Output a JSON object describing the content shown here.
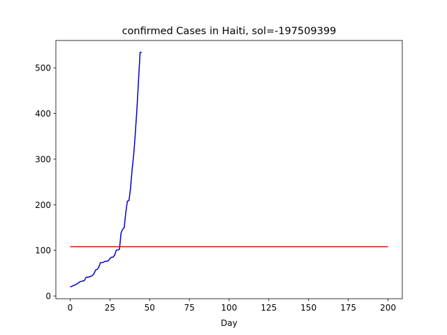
{
  "chart_data": {
    "type": "line",
    "title": "confirmed Cases in Haiti, sol=-197509399",
    "xlabel": "Day",
    "ylabel": "",
    "xlim": [
      -9,
      209
    ],
    "ylim": [
      -6,
      560
    ],
    "xticks": [
      0,
      25,
      50,
      75,
      100,
      125,
      150,
      175,
      200
    ],
    "yticks": [
      0,
      100,
      200,
      300,
      400,
      500
    ],
    "grid": false,
    "series": [
      {
        "color": "#0000cd",
        "x": [
          0,
          1,
          2,
          3,
          4,
          5,
          6,
          7,
          8,
          9,
          10,
          11,
          12,
          13,
          14,
          15,
          16,
          17,
          18,
          19,
          20,
          21,
          22,
          23,
          24,
          25,
          26,
          27,
          28,
          29,
          30,
          31,
          32,
          33,
          34,
          35,
          36,
          37,
          38,
          39,
          40,
          41,
          42,
          43,
          44,
          45
        ],
        "y": [
          20,
          21,
          23,
          24,
          26,
          28,
          31,
          32,
          33,
          34,
          41,
          41,
          42,
          43,
          45,
          49,
          57,
          58,
          63,
          73,
          73,
          74,
          76,
          76,
          77,
          82,
          85,
          85,
          90,
          100,
          101,
          102,
          138,
          146,
          150,
          183,
          208,
          209,
          237,
          278,
          311,
          357,
          410,
          472,
          534,
          534
        ]
      },
      {
        "color": "#ff0000",
        "x": [
          0,
          200
        ],
        "y": [
          108,
          108
        ]
      }
    ]
  }
}
